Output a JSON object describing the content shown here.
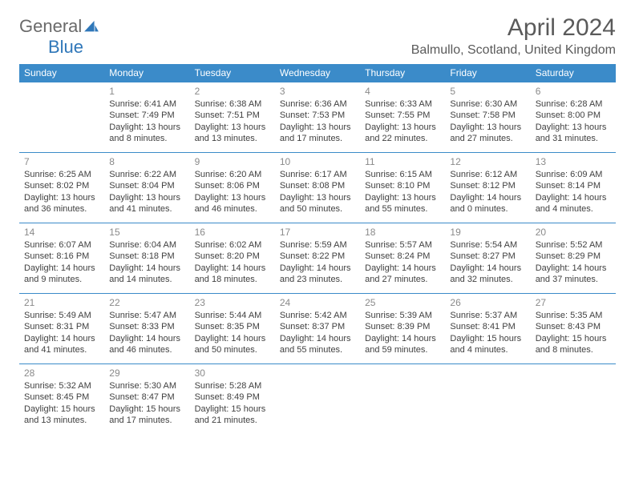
{
  "logo": {
    "text_gray": "General",
    "text_blue": "Blue"
  },
  "title": "April 2024",
  "location": "Balmullo, Scotland, United Kingdom",
  "colors": {
    "header_bg": "#3b8bc9",
    "header_text": "#ffffff",
    "rule": "#3b8bc9",
    "daynum": "#8a8a8a",
    "body_text": "#404040",
    "title_text": "#5a5a5a",
    "logo_gray": "#6a6a6a",
    "logo_blue": "#2f77b9",
    "page_bg": "#ffffff"
  },
  "daynames": [
    "Sunday",
    "Monday",
    "Tuesday",
    "Wednesday",
    "Thursday",
    "Friday",
    "Saturday"
  ],
  "weeks": [
    [
      null,
      {
        "n": "1",
        "sr": "Sunrise: 6:41 AM",
        "ss": "Sunset: 7:49 PM",
        "d1": "Daylight: 13 hours",
        "d2": "and 8 minutes."
      },
      {
        "n": "2",
        "sr": "Sunrise: 6:38 AM",
        "ss": "Sunset: 7:51 PM",
        "d1": "Daylight: 13 hours",
        "d2": "and 13 minutes."
      },
      {
        "n": "3",
        "sr": "Sunrise: 6:36 AM",
        "ss": "Sunset: 7:53 PM",
        "d1": "Daylight: 13 hours",
        "d2": "and 17 minutes."
      },
      {
        "n": "4",
        "sr": "Sunrise: 6:33 AM",
        "ss": "Sunset: 7:55 PM",
        "d1": "Daylight: 13 hours",
        "d2": "and 22 minutes."
      },
      {
        "n": "5",
        "sr": "Sunrise: 6:30 AM",
        "ss": "Sunset: 7:58 PM",
        "d1": "Daylight: 13 hours",
        "d2": "and 27 minutes."
      },
      {
        "n": "6",
        "sr": "Sunrise: 6:28 AM",
        "ss": "Sunset: 8:00 PM",
        "d1": "Daylight: 13 hours",
        "d2": "and 31 minutes."
      }
    ],
    [
      {
        "n": "7",
        "sr": "Sunrise: 6:25 AM",
        "ss": "Sunset: 8:02 PM",
        "d1": "Daylight: 13 hours",
        "d2": "and 36 minutes."
      },
      {
        "n": "8",
        "sr": "Sunrise: 6:22 AM",
        "ss": "Sunset: 8:04 PM",
        "d1": "Daylight: 13 hours",
        "d2": "and 41 minutes."
      },
      {
        "n": "9",
        "sr": "Sunrise: 6:20 AM",
        "ss": "Sunset: 8:06 PM",
        "d1": "Daylight: 13 hours",
        "d2": "and 46 minutes."
      },
      {
        "n": "10",
        "sr": "Sunrise: 6:17 AM",
        "ss": "Sunset: 8:08 PM",
        "d1": "Daylight: 13 hours",
        "d2": "and 50 minutes."
      },
      {
        "n": "11",
        "sr": "Sunrise: 6:15 AM",
        "ss": "Sunset: 8:10 PM",
        "d1": "Daylight: 13 hours",
        "d2": "and 55 minutes."
      },
      {
        "n": "12",
        "sr": "Sunrise: 6:12 AM",
        "ss": "Sunset: 8:12 PM",
        "d1": "Daylight: 14 hours",
        "d2": "and 0 minutes."
      },
      {
        "n": "13",
        "sr": "Sunrise: 6:09 AM",
        "ss": "Sunset: 8:14 PM",
        "d1": "Daylight: 14 hours",
        "d2": "and 4 minutes."
      }
    ],
    [
      {
        "n": "14",
        "sr": "Sunrise: 6:07 AM",
        "ss": "Sunset: 8:16 PM",
        "d1": "Daylight: 14 hours",
        "d2": "and 9 minutes."
      },
      {
        "n": "15",
        "sr": "Sunrise: 6:04 AM",
        "ss": "Sunset: 8:18 PM",
        "d1": "Daylight: 14 hours",
        "d2": "and 14 minutes."
      },
      {
        "n": "16",
        "sr": "Sunrise: 6:02 AM",
        "ss": "Sunset: 8:20 PM",
        "d1": "Daylight: 14 hours",
        "d2": "and 18 minutes."
      },
      {
        "n": "17",
        "sr": "Sunrise: 5:59 AM",
        "ss": "Sunset: 8:22 PM",
        "d1": "Daylight: 14 hours",
        "d2": "and 23 minutes."
      },
      {
        "n": "18",
        "sr": "Sunrise: 5:57 AM",
        "ss": "Sunset: 8:24 PM",
        "d1": "Daylight: 14 hours",
        "d2": "and 27 minutes."
      },
      {
        "n": "19",
        "sr": "Sunrise: 5:54 AM",
        "ss": "Sunset: 8:27 PM",
        "d1": "Daylight: 14 hours",
        "d2": "and 32 minutes."
      },
      {
        "n": "20",
        "sr": "Sunrise: 5:52 AM",
        "ss": "Sunset: 8:29 PM",
        "d1": "Daylight: 14 hours",
        "d2": "and 37 minutes."
      }
    ],
    [
      {
        "n": "21",
        "sr": "Sunrise: 5:49 AM",
        "ss": "Sunset: 8:31 PM",
        "d1": "Daylight: 14 hours",
        "d2": "and 41 minutes."
      },
      {
        "n": "22",
        "sr": "Sunrise: 5:47 AM",
        "ss": "Sunset: 8:33 PM",
        "d1": "Daylight: 14 hours",
        "d2": "and 46 minutes."
      },
      {
        "n": "23",
        "sr": "Sunrise: 5:44 AM",
        "ss": "Sunset: 8:35 PM",
        "d1": "Daylight: 14 hours",
        "d2": "and 50 minutes."
      },
      {
        "n": "24",
        "sr": "Sunrise: 5:42 AM",
        "ss": "Sunset: 8:37 PM",
        "d1": "Daylight: 14 hours",
        "d2": "and 55 minutes."
      },
      {
        "n": "25",
        "sr": "Sunrise: 5:39 AM",
        "ss": "Sunset: 8:39 PM",
        "d1": "Daylight: 14 hours",
        "d2": "and 59 minutes."
      },
      {
        "n": "26",
        "sr": "Sunrise: 5:37 AM",
        "ss": "Sunset: 8:41 PM",
        "d1": "Daylight: 15 hours",
        "d2": "and 4 minutes."
      },
      {
        "n": "27",
        "sr": "Sunrise: 5:35 AM",
        "ss": "Sunset: 8:43 PM",
        "d1": "Daylight: 15 hours",
        "d2": "and 8 minutes."
      }
    ],
    [
      {
        "n": "28",
        "sr": "Sunrise: 5:32 AM",
        "ss": "Sunset: 8:45 PM",
        "d1": "Daylight: 15 hours",
        "d2": "and 13 minutes."
      },
      {
        "n": "29",
        "sr": "Sunrise: 5:30 AM",
        "ss": "Sunset: 8:47 PM",
        "d1": "Daylight: 15 hours",
        "d2": "and 17 minutes."
      },
      {
        "n": "30",
        "sr": "Sunrise: 5:28 AM",
        "ss": "Sunset: 8:49 PM",
        "d1": "Daylight: 15 hours",
        "d2": "and 21 minutes."
      },
      null,
      null,
      null,
      null
    ]
  ]
}
